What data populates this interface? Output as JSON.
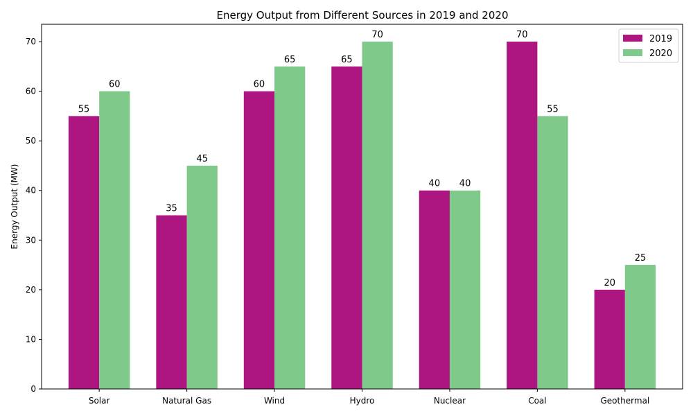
{
  "chart_data": {
    "type": "bar",
    "title": "Energy Output from Different Sources in 2019 and 2020",
    "xlabel": "",
    "ylabel": "Energy Output (MW)",
    "categories": [
      "Solar",
      "Natural Gas",
      "Wind",
      "Hydro",
      "Nuclear",
      "Coal",
      "Geothermal"
    ],
    "series": [
      {
        "name": "2019",
        "values": [
          55,
          35,
          60,
          65,
          40,
          70,
          20
        ],
        "color": "#ad1680"
      },
      {
        "name": "2020",
        "values": [
          60,
          45,
          65,
          70,
          40,
          55,
          25
        ],
        "color": "#7fc98b"
      }
    ],
    "ylim": [
      0,
      73.5
    ],
    "yticks": [
      0,
      10,
      20,
      30,
      40,
      50,
      60,
      70
    ],
    "grid": false,
    "legend_position": "top-right"
  }
}
